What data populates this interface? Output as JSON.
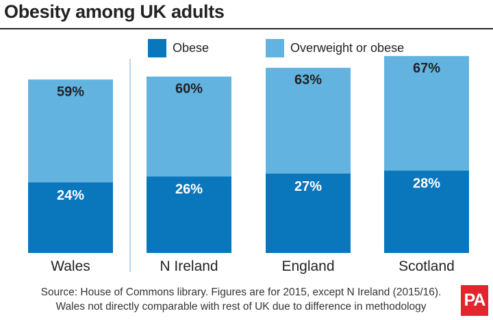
{
  "title": "Obesity among UK adults",
  "colors": {
    "obese": "#0a76bb",
    "overweight": "#63b3e0",
    "text_dark": "#222222",
    "divider": "#9fcbe6",
    "brand": "#e3262e"
  },
  "legend": [
    {
      "label": "Obese",
      "color": "#0a76bb"
    },
    {
      "label": "Overweight or obese",
      "color": "#63b3e0"
    }
  ],
  "chart_data": {
    "type": "bar",
    "categories": [
      "Wales",
      "N Ireland",
      "England",
      "Scotland"
    ],
    "series": [
      {
        "name": "Obese",
        "values": [
          24,
          26,
          27,
          28
        ],
        "labels": [
          "24%",
          "26%",
          "27%",
          "28%"
        ]
      },
      {
        "name": "Overweight or obese",
        "values": [
          59,
          60,
          63,
          67
        ],
        "labels": [
          "59%",
          "60%",
          "63%",
          "67%"
        ]
      }
    ],
    "overlapped": true,
    "ylim": [
      0,
      100
    ],
    "axis_visible": false,
    "grid": false,
    "legend_position": "top"
  },
  "source": {
    "line1": "Source: House of Commons library. Figures are for 2015, except N Ireland (2015/16).",
    "line2": "Wales not directly comparable with rest of UK due to difference in methodology"
  },
  "logo": "PA"
}
